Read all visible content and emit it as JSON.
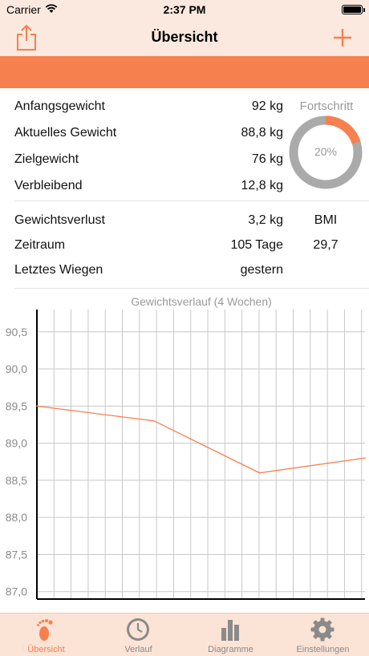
{
  "status_bar": {
    "carrier": "Carrier",
    "time": "2:37 PM"
  },
  "nav": {
    "title": "Übersicht",
    "left_icon": "share-icon",
    "right_icon": "plus-icon"
  },
  "colors": {
    "accent": "#f6804e",
    "bar_bg": "#fbe9df",
    "tab_bg": "#fbe3d6",
    "grey": "#aaaaaa"
  },
  "stats": [
    {
      "label": "Anfangsgewicht",
      "value": "92 kg"
    },
    {
      "label": "Aktuelles Gewicht",
      "value": "88,8 kg"
    },
    {
      "label": "Zielgewicht",
      "value": "76 kg"
    },
    {
      "label": "Verbleibend",
      "value": "12,8 kg"
    }
  ],
  "progress": {
    "label": "Fortschritt",
    "percent_text": "20%",
    "fraction": 0.2
  },
  "summary": [
    {
      "label": "Gewichtsverlust",
      "value": "3,2 kg"
    },
    {
      "label": "Zeitraum",
      "value": "105 Tage"
    },
    {
      "label": "Letztes Wiegen",
      "value": "gestern"
    }
  ],
  "bmi": {
    "label": "BMI",
    "value": "29,7"
  },
  "chart_data": {
    "type": "line",
    "title": "Gewichtsverlauf (4 Wochen)",
    "xlabel": "",
    "ylabel": "",
    "ylim": [
      86.9,
      90.8
    ],
    "yticks": [
      "87,0",
      "87,5",
      "88,0",
      "88,5",
      "89,0",
      "89,5",
      "90,0",
      "90,5"
    ],
    "ytick_values": [
      87.0,
      87.5,
      88.0,
      88.5,
      89.0,
      89.5,
      90.0,
      90.5
    ],
    "x_range": [
      0,
      28
    ],
    "grid": true,
    "series": [
      {
        "x": [
          0,
          10,
          19,
          28
        ],
        "values": [
          89.5,
          89.3,
          88.6,
          88.8
        ],
        "color": "#f6804e"
      }
    ]
  },
  "tabs": [
    {
      "label": "Übersicht",
      "icon": "footprint-icon",
      "active": true
    },
    {
      "label": "Verlauf",
      "icon": "clock-icon",
      "active": false
    },
    {
      "label": "Diagramme",
      "icon": "bar-chart-icon",
      "active": false
    },
    {
      "label": "Einstellungen",
      "icon": "gear-icon",
      "active": false
    }
  ]
}
